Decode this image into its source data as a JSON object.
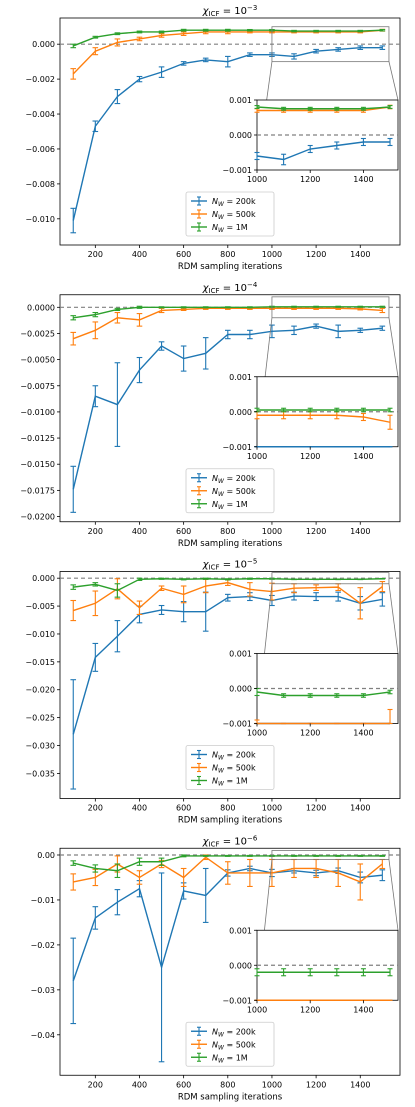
{
  "colors": {
    "N_W_200k": "#1f77b4",
    "N_W_500k": "#ff7f0e",
    "N_W_1M": "#2ca02c",
    "reference": "#808080"
  },
  "chart_data": [
    {
      "type": "line",
      "title_prefix": "χ",
      "title_sub": "ICF",
      "title_mid": " = 10",
      "title_exp": "−3",
      "xlabel": "RDM sampling iterations",
      "ylabel": "",
      "xlim": [
        40,
        1580
      ],
      "ylim": [
        -0.0115,
        0.0015
      ],
      "xticks": [
        200,
        400,
        600,
        800,
        1000,
        1200,
        1400
      ],
      "yticks": [
        -0.01,
        -0.008,
        -0.006,
        -0.004,
        -0.002,
        0.0
      ],
      "ytick_labels": [
        "−0.010",
        "−0.008",
        "−0.006",
        "−0.004",
        "−0.002",
        "0.000"
      ],
      "reference_line": 0,
      "grid": false,
      "legend_placement": "lower-center",
      "x": [
        100,
        200,
        300,
        400,
        500,
        600,
        700,
        800,
        900,
        1000,
        1100,
        1200,
        1300,
        1400,
        1500
      ],
      "series": [
        {
          "name": "N_W = 200k",
          "legend_main": "N",
          "legend_sub": "W",
          "legend_rest": " = 200k",
          "color_key": "N_W_200k",
          "values": [
            -0.0101,
            -0.0047,
            -0.003,
            -0.002,
            -0.0016,
            -0.0011,
            -0.0009,
            -0.001,
            -0.0006,
            -0.0006,
            -0.0007,
            -0.0004,
            -0.0003,
            -0.0002,
            -0.0002
          ],
          "errors": [
            0.0007,
            0.0003,
            0.0004,
            0.00015,
            0.0003,
            0.0001,
            0.0001,
            0.0003,
            0.0001,
            0.0001,
            0.00015,
            0.0001,
            0.0001,
            0.0001,
            0.0001
          ]
        },
        {
          "name": "N_W = 500k",
          "legend_main": "N",
          "legend_sub": "W",
          "legend_rest": " = 500k",
          "color_key": "N_W_500k",
          "values": [
            -0.0017,
            -0.0004,
            0.0001,
            0.0003,
            0.0005,
            0.0006,
            0.0007,
            0.0007,
            0.0007,
            0.0007,
            0.0007,
            0.0007,
            0.0007,
            0.0007,
            0.0008
          ],
          "errors": [
            0.0003,
            0.0002,
            0.0002,
            0.0001,
            0.0001,
            0.0001,
            0.0001,
            0.0001,
            5e-05,
            5e-05,
            5e-05,
            5e-05,
            5e-05,
            5e-05,
            5e-05
          ]
        },
        {
          "name": "N_W = 1M",
          "legend_main": "N",
          "legend_sub": "W",
          "legend_rest": " = 1M",
          "color_key": "N_W_1M",
          "values": [
            -0.0001,
            0.0004,
            0.0006,
            0.0007,
            0.0007,
            0.0008,
            0.0008,
            0.0008,
            0.0008,
            0.0008,
            0.00075,
            0.00075,
            0.00075,
            0.00075,
            0.0008
          ],
          "errors": [
            0.0001,
            5e-05,
            5e-05,
            5e-05,
            5e-05,
            5e-05,
            5e-05,
            5e-05,
            4e-05,
            4e-05,
            4e-05,
            4e-05,
            4e-05,
            4e-05,
            4e-05
          ]
        }
      ],
      "inset": {
        "xlim": [
          1000,
          1530
        ],
        "ylim": [
          -0.001,
          0.001
        ],
        "xticks": [
          1000,
          1200,
          1400
        ],
        "yticks": [
          -0.001,
          0.0,
          0.001
        ],
        "ytick_labels": [
          "−0.001",
          "0.000",
          "0.001"
        ],
        "zoom_ylim": [
          -0.001,
          0.001
        ]
      }
    },
    {
      "type": "line",
      "title_prefix": "χ",
      "title_sub": "ICF",
      "title_mid": " = 10",
      "title_exp": "−4",
      "xlabel": "RDM sampling iterations",
      "ylabel": "",
      "xlim": [
        40,
        1580
      ],
      "ylim": [
        -0.0205,
        0.0012
      ],
      "xticks": [
        200,
        400,
        600,
        800,
        1000,
        1200,
        1400
      ],
      "yticks": [
        -0.02,
        -0.0175,
        -0.015,
        -0.0125,
        -0.01,
        -0.0075,
        -0.005,
        -0.0025,
        0.0
      ],
      "ytick_labels": [
        "−0.0200",
        "−0.0175",
        "−0.0150",
        "−0.0125",
        "−0.0100",
        "−0.0075",
        "−0.0050",
        "−0.0025",
        "0.0000"
      ],
      "reference_line": 0,
      "grid": false,
      "legend_placement": "lower-center",
      "x": [
        100,
        200,
        300,
        400,
        500,
        600,
        700,
        800,
        900,
        1000,
        1100,
        1200,
        1300,
        1400,
        1500
      ],
      "series": [
        {
          "name": "N_W = 200k",
          "legend_main": "N",
          "legend_sub": "W",
          "legend_rest": " = 200k",
          "color_key": "N_W_200k",
          "values": [
            -0.0174,
            -0.0085,
            -0.0093,
            -0.006,
            -0.0037,
            -0.0049,
            -0.0044,
            -0.0026,
            -0.0026,
            -0.0023,
            -0.0022,
            -0.0018,
            -0.0023,
            -0.0022,
            -0.002
          ],
          "errors": [
            0.0022,
            0.001,
            0.004,
            0.0012,
            0.0004,
            0.0012,
            0.0015,
            0.0004,
            0.0004,
            0.0006,
            0.0004,
            0.0002,
            0.0006,
            0.0002,
            0.0002
          ]
        },
        {
          "name": "N_W = 500k",
          "legend_main": "N",
          "legend_sub": "W",
          "legend_rest": " = 500k",
          "color_key": "N_W_500k",
          "values": [
            -0.003,
            -0.0022,
            -0.001,
            -0.0012,
            -0.0003,
            -0.0002,
            -0.0001,
            -0.0001,
            -0.0001,
            -0.0001,
            -0.0001,
            -0.0001,
            -0.0001,
            -0.00015,
            -0.0003
          ],
          "errors": [
            0.0006,
            0.0008,
            0.0005,
            0.0006,
            0.0002,
            0.0001,
            0.0001,
            0.0001,
            0.0001,
            0.0001,
            0.0001,
            0.0001,
            0.0001,
            0.0001,
            0.0002
          ]
        },
        {
          "name": "N_W = 1M",
          "legend_main": "N",
          "legend_sub": "W",
          "legend_rest": " = 1M",
          "color_key": "N_W_1M",
          "values": [
            -0.001,
            -0.0007,
            -0.0002,
            0.0,
            0.0,
            0.0,
            0.0,
            0.0,
            0.0,
            5e-05,
            5e-05,
            5e-05,
            5e-05,
            5e-05,
            5e-05
          ],
          "errors": [
            0.0002,
            0.0002,
            0.0001,
            0.0001,
            5e-05,
            5e-05,
            5e-05,
            5e-05,
            5e-05,
            5e-05,
            5e-05,
            5e-05,
            5e-05,
            5e-05,
            5e-05
          ]
        }
      ],
      "inset": {
        "xlim": [
          1000,
          1530
        ],
        "ylim": [
          -0.001,
          0.001
        ],
        "xticks": [
          1000,
          1200,
          1400
        ],
        "yticks": [
          -0.001,
          0.0,
          0.001
        ],
        "ytick_labels": [
          "−0.001",
          "0.000",
          "0.001"
        ],
        "zoom_ylim": [
          -0.001,
          0.001
        ]
      }
    },
    {
      "type": "line",
      "title_prefix": "χ",
      "title_sub": "ICF",
      "title_mid": " = 10",
      "title_exp": "−5",
      "xlabel": "RDM sampling iterations",
      "ylabel": "",
      "xlim": [
        40,
        1580
      ],
      "ylim": [
        -0.0395,
        0.0012
      ],
      "xticks": [
        200,
        400,
        600,
        800,
        1000,
        1200,
        1400
      ],
      "yticks": [
        -0.035,
        -0.03,
        -0.025,
        -0.02,
        -0.015,
        -0.01,
        -0.005,
        0.0
      ],
      "ytick_labels": [
        "−0.035",
        "−0.030",
        "−0.025",
        "−0.020",
        "−0.015",
        "−0.010",
        "−0.005",
        "0.000"
      ],
      "reference_line": 0,
      "grid": false,
      "legend_placement": "lower-center",
      "x": [
        100,
        200,
        300,
        400,
        500,
        600,
        700,
        800,
        900,
        1000,
        1100,
        1200,
        1300,
        1400,
        1500
      ],
      "series": [
        {
          "name": "N_W = 200k",
          "legend_main": "N",
          "legend_sub": "W",
          "legend_rest": " = 200k",
          "color_key": "N_W_200k",
          "values": [
            -0.028,
            -0.0142,
            -0.0104,
            -0.0065,
            -0.0057,
            -0.006,
            -0.006,
            -0.0035,
            -0.0033,
            -0.004,
            -0.0032,
            -0.0033,
            -0.0033,
            -0.0045,
            -0.0038
          ],
          "errors": [
            0.0098,
            0.0025,
            0.0028,
            0.0015,
            0.0008,
            0.0018,
            0.0035,
            0.0006,
            0.0007,
            0.0009,
            0.0007,
            0.0007,
            0.0008,
            0.0012,
            0.0012
          ]
        },
        {
          "name": "N_W = 500k",
          "legend_main": "N",
          "legend_sub": "W",
          "legend_rest": " = 500k",
          "color_key": "N_W_500k",
          "values": [
            -0.0058,
            -0.0045,
            -0.0019,
            -0.0053,
            -0.0018,
            -0.0029,
            -0.0014,
            -0.0008,
            -0.002,
            -0.0024,
            -0.0018,
            -0.0017,
            -0.0016,
            -0.0045,
            -0.0015
          ],
          "errors": [
            0.0018,
            0.0022,
            0.0018,
            0.0012,
            0.0004,
            0.0015,
            0.0012,
            0.0005,
            0.0012,
            0.0015,
            0.0008,
            0.0005,
            0.0006,
            0.0028,
            0.0009
          ]
        },
        {
          "name": "N_W = 1M",
          "legend_main": "N",
          "legend_sub": "W",
          "legend_rest": " = 1M",
          "color_key": "N_W_1M",
          "values": [
            -0.0016,
            -0.0011,
            -0.0022,
            -0.0002,
            -0.0001,
            -0.0002,
            -0.0001,
            -0.0002,
            -0.0001,
            -0.0001,
            -0.0002,
            -0.0002,
            -0.0002,
            -0.0002,
            -0.0001
          ],
          "errors": [
            0.0004,
            0.0003,
            0.0012,
            0.0002,
            0.0001,
            0.0001,
            0.0001,
            0.0001,
            0.0001,
            0.0001,
            5e-05,
            5e-05,
            5e-05,
            5e-05,
            5e-05
          ]
        }
      ],
      "inset": {
        "xlim": [
          1000,
          1530
        ],
        "ylim": [
          -0.001,
          0.001
        ],
        "xticks": [
          1000,
          1200,
          1400
        ],
        "yticks": [
          -0.001,
          0.0,
          0.001
        ],
        "ytick_labels": [
          "−0.001",
          "0.000",
          "0.001"
        ],
        "zoom_ylim": [
          -0.001,
          0.001
        ]
      }
    },
    {
      "type": "line",
      "title_prefix": "χ",
      "title_sub": "ICF",
      "title_mid": " = 10",
      "title_exp": "−6",
      "xlabel": "RDM sampling iterations",
      "ylabel": "",
      "xlim": [
        40,
        1580
      ],
      "ylim": [
        -0.049,
        0.0015
      ],
      "xticks": [
        200,
        400,
        600,
        800,
        1000,
        1200,
        1400
      ],
      "yticks": [
        -0.04,
        -0.03,
        -0.02,
        -0.01,
        0.0
      ],
      "ytick_labels": [
        "−0.04",
        "−0.03",
        "−0.02",
        "−0.01",
        "0.00"
      ],
      "reference_line": 0,
      "grid": false,
      "legend_placement": "lower-center",
      "x": [
        100,
        200,
        300,
        400,
        500,
        600,
        700,
        800,
        900,
        1000,
        1100,
        1200,
        1300,
        1400,
        1500
      ],
      "series": [
        {
          "name": "N_W = 200k",
          "legend_main": "N",
          "legend_sub": "W",
          "legend_rest": " = 200k",
          "color_key": "N_W_200k",
          "values": [
            -0.028,
            -0.014,
            -0.0105,
            -0.0075,
            -0.025,
            -0.008,
            -0.009,
            -0.004,
            -0.003,
            -0.004,
            -0.0035,
            -0.004,
            -0.0035,
            -0.005,
            -0.0045
          ],
          "errors": [
            0.0095,
            0.0025,
            0.0028,
            0.0018,
            0.021,
            0.0018,
            0.006,
            0.0007,
            0.0005,
            0.0008,
            0.0005,
            0.0006,
            0.0006,
            0.0012,
            0.0012
          ]
        },
        {
          "name": "N_W = 500k",
          "legend_main": "N",
          "legend_sub": "W",
          "legend_rest": " = 500k",
          "color_key": "N_W_500k",
          "values": [
            -0.006,
            -0.005,
            -0.002,
            -0.005,
            -0.002,
            -0.005,
            -0.0005,
            -0.004,
            -0.004,
            -0.004,
            -0.003,
            -0.003,
            -0.004,
            -0.006,
            -0.002
          ],
          "errors": [
            0.0018,
            0.0018,
            0.0018,
            0.0015,
            0.0008,
            0.002,
            0.0005,
            0.0025,
            0.003,
            0.003,
            0.002,
            0.002,
            0.003,
            0.004,
            0.001
          ]
        },
        {
          "name": "N_W = 1M",
          "legend_main": "N",
          "legend_sub": "W",
          "legend_rest": " = 1M",
          "color_key": "N_W_1M",
          "values": [
            -0.0018,
            -0.003,
            -0.0035,
            -0.0015,
            -0.0015,
            -0.0002,
            -0.0002,
            -0.0002,
            -0.0002,
            -0.0002,
            -0.0002,
            -0.0002,
            -0.0002,
            -0.0002,
            -0.0002
          ],
          "errors": [
            0.0005,
            0.0008,
            0.0015,
            0.0008,
            0.0008,
            0.0002,
            0.0001,
            0.0001,
            0.0001,
            0.0001,
            0.0001,
            0.0001,
            0.0001,
            0.0001,
            0.0001
          ]
        }
      ],
      "inset": {
        "xlim": [
          1000,
          1530
        ],
        "ylim": [
          -0.001,
          0.001
        ],
        "xticks": [
          1000,
          1200,
          1400
        ],
        "yticks": [
          -0.001,
          0.0,
          0.001
        ],
        "ytick_labels": [
          "−0.001",
          "0.000",
          "0.001"
        ],
        "zoom_ylim": [
          -0.001,
          0.001
        ]
      }
    }
  ]
}
